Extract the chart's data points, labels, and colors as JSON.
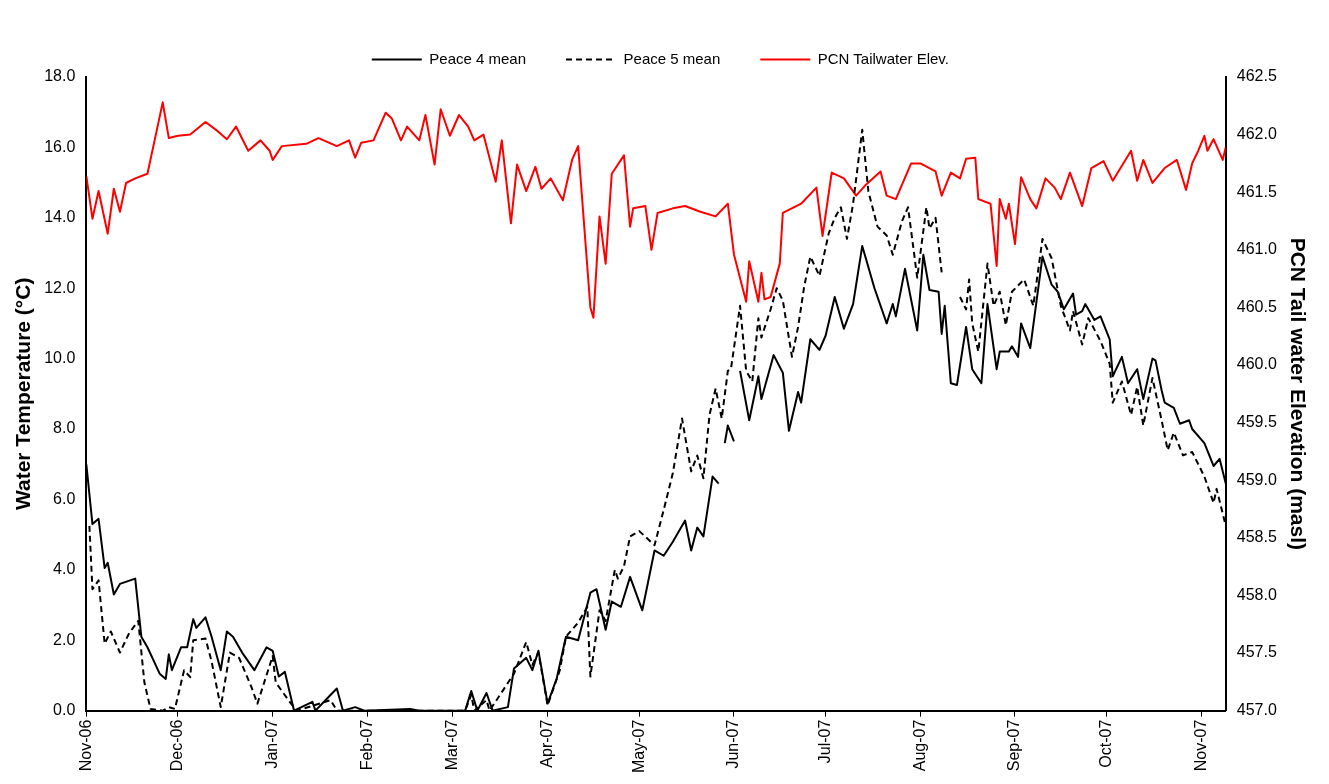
{
  "chart_data": {
    "type": "line",
    "ylabel": "Water Temperature (°C)",
    "y2label": "PCN Tail water Elevation (masl)",
    "legend": "top",
    "grid": false,
    "marker": "none",
    "xlim": [
      "2006-11-01",
      "2007-11-09"
    ],
    "xticks": [
      {
        "value": "2006-11-01",
        "label": "Nov-06"
      },
      {
        "value": "2006-12-01",
        "label": "Dec-06"
      },
      {
        "value": "2007-01-01",
        "label": "Jan-07"
      },
      {
        "value": "2007-02-01",
        "label": "Feb-07"
      },
      {
        "value": "2007-03-01",
        "label": "Mar-07"
      },
      {
        "value": "2007-04-01",
        "label": "Apr-07"
      },
      {
        "value": "2007-05-01",
        "label": "May-07"
      },
      {
        "value": "2007-06-01",
        "label": "Jun-07"
      },
      {
        "value": "2007-07-01",
        "label": "Jul-07"
      },
      {
        "value": "2007-08-01",
        "label": "Aug-07"
      },
      {
        "value": "2007-09-01",
        "label": "Sep-07"
      },
      {
        "value": "2007-10-01",
        "label": "Oct-07"
      },
      {
        "value": "2007-11-01",
        "label": "Nov-07"
      }
    ],
    "ylim": [
      0,
      18
    ],
    "yticks": [
      {
        "value": 0,
        "label": "0.0"
      },
      {
        "value": 2,
        "label": "2.0"
      },
      {
        "value": 4,
        "label": "4.0"
      },
      {
        "value": 6,
        "label": "6.0"
      },
      {
        "value": 8,
        "label": "8.0"
      },
      {
        "value": 10,
        "label": "10.0"
      },
      {
        "value": 12,
        "label": "12.0"
      },
      {
        "value": 14,
        "label": "14.0"
      },
      {
        "value": 16,
        "label": "16.0"
      },
      {
        "value": 18,
        "label": "18.0"
      }
    ],
    "y2lim": [
      457,
      462.5
    ],
    "y2ticks": [
      {
        "value": 457,
        "label": "457.0"
      },
      457.5,
      {
        "value": 458,
        "label": "458.0"
      },
      458.5,
      {
        "value": 459,
        "label": "459.0"
      },
      459.5,
      {
        "value": 460,
        "label": "460.0"
      },
      460.5,
      {
        "value": 461,
        "label": "461.0"
      },
      461.5,
      {
        "value": 462,
        "label": "462.0"
      },
      462.5
    ],
    "series": [
      {
        "name": "Peace 4 mean",
        "color": "#000000",
        "line_style": "solid",
        "x": [
          "2006-11-01",
          "2006-11-03",
          "2006-11-05",
          "2006-11-07",
          "2006-11-08",
          "2006-11-10",
          "2006-11-12",
          "2006-11-17",
          "2006-11-19",
          "2006-11-21",
          "2006-11-25",
          "2006-11-27",
          "2006-11-28",
          "2006-11-29",
          "2006-12-02",
          "2006-12-04",
          "2006-12-06",
          "2006-12-07",
          "2006-12-10",
          "2006-12-12",
          "2006-12-15",
          "2006-12-17",
          "2006-12-19",
          "2006-12-22",
          "2006-12-26",
          "2006-12-30",
          "2007-01-01",
          "2007-01-03",
          "2007-01-05",
          "2007-01-08",
          "2007-01-14",
          "2007-01-15",
          "2007-01-20",
          "2007-01-22",
          "2007-01-24",
          "2007-01-28",
          "2007-01-31",
          "2007-02-15",
          "2007-02-18",
          "2007-03-05",
          "2007-03-07",
          "2007-03-09",
          "2007-03-12",
          "2007-03-14",
          "2007-03-19",
          "2007-03-21",
          "2007-03-25",
          "2007-03-27",
          "2007-03-29",
          "2007-04-01",
          "2007-04-04",
          "2007-04-07",
          "2007-04-11",
          "2007-04-15",
          "2007-04-17",
          "2007-04-20",
          "2007-04-22",
          "2007-04-25",
          "2007-04-28",
          "2007-05-02",
          "2007-05-06",
          "2007-05-09",
          "2007-05-12",
          "2007-05-16",
          "2007-05-18",
          "2007-05-20",
          "2007-05-22",
          "2007-05-25",
          "2007-05-27",
          "2007-05-28",
          "2007-05-29",
          "2007-05-30",
          "2007-06-01",
          "2007-06-02",
          "2007-06-03",
          "2007-06-06",
          "2007-06-09",
          "2007-06-10",
          "2007-06-14",
          "2007-06-17",
          "2007-06-19",
          "2007-06-22",
          "2007-06-23",
          "2007-06-26",
          "2007-06-29",
          "2007-07-01",
          "2007-07-04",
          "2007-07-07",
          "2007-07-10",
          "2007-07-13",
          "2007-07-17",
          "2007-07-21",
          "2007-07-23",
          "2007-07-24",
          "2007-07-27",
          "2007-07-31",
          "2007-08-02",
          "2007-08-04",
          "2007-08-07",
          "2007-08-08",
          "2007-08-09",
          "2007-08-11",
          "2007-08-13",
          "2007-08-16",
          "2007-08-18",
          "2007-08-21",
          "2007-08-23",
          "2007-08-26",
          "2007-08-27",
          "2007-08-30",
          "2007-08-31",
          "2007-09-02",
          "2007-09-03",
          "2007-09-06",
          "2007-09-10",
          "2007-09-13",
          "2007-09-15",
          "2007-09-17",
          "2007-09-20",
          "2007-09-21",
          "2007-09-23",
          "2007-09-24",
          "2007-09-27",
          "2007-09-29",
          "2007-10-02",
          "2007-10-03",
          "2007-10-06",
          "2007-10-08",
          "2007-10-11",
          "2007-10-13",
          "2007-10-16",
          "2007-10-17",
          "2007-10-19",
          "2007-10-20",
          "2007-10-23",
          "2007-10-25",
          "2007-10-28",
          "2007-10-29",
          "2007-11-02",
          "2007-11-05",
          "2007-11-07",
          "2007-11-09"
        ],
        "values": [
          7.0,
          5.3,
          5.45,
          4.05,
          4.2,
          3.3,
          3.6,
          3.75,
          2.1,
          1.8,
          1.05,
          0.9,
          1.6,
          1.15,
          1.8,
          1.8,
          2.6,
          2.35,
          2.65,
          2.1,
          1.15,
          2.25,
          2.1,
          1.65,
          1.15,
          1.8,
          1.7,
          0.97,
          1.1,
          0,
          0.25,
          0,
          0.45,
          0.63,
          0,
          0.1,
          0,
          0.05,
          0,
          0,
          0.56,
          0,
          0.5,
          0,
          0.1,
          1.2,
          1.5,
          1.15,
          1.7,
          0.2,
          0.92,
          2.1,
          2.0,
          3.35,
          3.45,
          2.3,
          3.1,
          2.95,
          3.8,
          2.85,
          4.55,
          4.4,
          4.8,
          5.4,
          4.55,
          5.2,
          4.95,
          6.65,
          6.45,
          null,
          7.6,
          8.1,
          7.65,
          null,
          9.65,
          8.25,
          9.5,
          8.85,
          10.1,
          9.6,
          7.95,
          9.05,
          8.75,
          10.55,
          10.25,
          10.65,
          11.75,
          10.85,
          11.55,
          13.2,
          12.0,
          11.0,
          11.55,
          11.2,
          12.55,
          10.8,
          12.95,
          11.95,
          11.9,
          10.7,
          11.5,
          9.3,
          9.25,
          10.9,
          9.7,
          9.3,
          11.55,
          9.7,
          10.2,
          10.2,
          10.35,
          10.05,
          11.0,
          10.3,
          12.9,
          12.1,
          11.9,
          11.4,
          11.85,
          11.25,
          11.35,
          11.55,
          11.1,
          11.2,
          10.55,
          9.5,
          10.05,
          9.3,
          9.7,
          8.85,
          10.0,
          9.95,
          9.1,
          8.75,
          8.6,
          8.15,
          8.25,
          8.0,
          7.6,
          6.95,
          7.15,
          6.45
        ]
      },
      {
        "name": "Peace 5 mean",
        "color": "#000000",
        "line_style": "dashed",
        "x": [
          "2006-11-02",
          "2006-11-03",
          "2006-11-05",
          "2006-11-07",
          "2006-11-09",
          "2006-11-12",
          "2006-11-15",
          "2006-11-18",
          "2006-11-20",
          "2006-11-22",
          "2006-11-26",
          "2006-11-28",
          "2006-11-30",
          "2006-12-03",
          "2006-12-05",
          "2006-12-06",
          "2006-12-10",
          "2006-12-12",
          "2006-12-15",
          "2006-12-18",
          "2006-12-21",
          "2006-12-25",
          "2006-12-27",
          "2007-01-01",
          "2007-01-02",
          "2007-01-07",
          "2007-01-09",
          "2007-01-20",
          "2007-01-22",
          "2007-03-05",
          "2007-03-07",
          "2007-03-08",
          "2007-03-12",
          "2007-03-13",
          "2007-03-21",
          "2007-03-25",
          "2007-03-27",
          "2007-03-29",
          "2007-04-01",
          "2007-04-05",
          "2007-04-07",
          "2007-04-11",
          "2007-04-14",
          "2007-04-15",
          "2007-04-18",
          "2007-04-20",
          "2007-04-23",
          "2007-04-24",
          "2007-04-26",
          "2007-04-28",
          "2007-05-01",
          "2007-05-06",
          "2007-05-09",
          "2007-05-12",
          "2007-05-15",
          "2007-05-18",
          "2007-05-20",
          "2007-05-22",
          "2007-05-24",
          "2007-05-26",
          "2007-05-28",
          "2007-05-30",
          "2007-05-31",
          "2007-06-03",
          "2007-06-05",
          "2007-06-07",
          "2007-06-09",
          "2007-06-10",
          "2007-06-13",
          "2007-06-15",
          "2007-06-17",
          "2007-06-20",
          "2007-06-22",
          "2007-06-24",
          "2007-06-26",
          "2007-06-29",
          "2007-07-02",
          "2007-07-04",
          "2007-07-06",
          "2007-07-08",
          "2007-07-10",
          "2007-07-13",
          "2007-07-15",
          "2007-07-18",
          "2007-07-21",
          "2007-07-23",
          "2007-07-26",
          "2007-07-28",
          "2007-07-31",
          "2007-08-03",
          "2007-08-04",
          "2007-08-06",
          "2007-08-08",
          "2007-08-10",
          "2007-08-14",
          "2007-08-16",
          "2007-08-17",
          "2007-08-18",
          "2007-08-20",
          "2007-08-23",
          "2007-08-25",
          "2007-08-27",
          "2007-08-29",
          "2007-08-31",
          "2007-09-04",
          "2007-09-07",
          "2007-09-10",
          "2007-09-13",
          "2007-09-16",
          "2007-09-19",
          "2007-09-20",
          "2007-09-23",
          "2007-09-25",
          "2007-09-29",
          "2007-10-02",
          "2007-10-03",
          "2007-10-06",
          "2007-10-09",
          "2007-10-11",
          "2007-10-13",
          "2007-10-16",
          "2007-10-19",
          "2007-10-21",
          "2007-10-23",
          "2007-10-26",
          "2007-10-29",
          "2007-11-02",
          "2007-11-05",
          "2007-11-06",
          "2007-11-09"
        ],
        "values": [
          5.25,
          3.45,
          3.7,
          1.9,
          2.25,
          1.65,
          2.2,
          2.55,
          0.8,
          0.05,
          0,
          0.1,
          0.05,
          1.15,
          0.95,
          2.0,
          2.05,
          1.4,
          0.1,
          1.65,
          1.5,
          0.68,
          0.2,
          1.55,
          0.8,
          0.2,
          0,
          0.3,
          0,
          0,
          0.45,
          0,
          0.3,
          0,
          1.05,
          1.95,
          1.3,
          1.65,
          0.15,
          1.15,
          2.1,
          2.5,
          2.95,
          0.97,
          2.85,
          2.55,
          4.0,
          3.75,
          4.1,
          4.95,
          5.1,
          4.7,
          5.7,
          6.75,
          8.3,
          6.8,
          7.25,
          6.6,
          8.4,
          9.15,
          8.3,
          9.65,
          9.7,
          11.5,
          9.65,
          9.35,
          11.15,
          10.6,
          11.4,
          12.0,
          11.65,
          10.05,
          10.9,
          12.05,
          12.9,
          12.35,
          13.55,
          14.0,
          14.3,
          13.4,
          14.4,
          16.5,
          14.75,
          13.75,
          13.5,
          12.95,
          13.9,
          14.3,
          12.3,
          14.3,
          13.7,
          14.0,
          12.45,
          null,
          11.75,
          11.4,
          12.25,
          11.0,
          10.2,
          12.7,
          11.5,
          11.9,
          10.95,
          11.9,
          12.25,
          11.5,
          13.4,
          12.85,
          11.5,
          10.8,
          11.35,
          10.4,
          11.15,
          10.5,
          9.85,
          8.75,
          9.35,
          8.4,
          9.2,
          8.1,
          9.45,
          8.25,
          7.4,
          7.9,
          7.25,
          7.35,
          6.65,
          5.9,
          6.3,
          5.25
        ]
      },
      {
        "name": "PCN Tailwater Elev.",
        "color": "#ff0000",
        "line_style": "solid",
        "axis": "y2",
        "x": [
          "2006-11-01",
          "2006-11-03",
          "2006-11-05",
          "2006-11-08",
          "2006-11-10",
          "2006-11-12",
          "2006-11-14",
          "2006-11-17",
          "2006-11-21",
          "2006-11-24",
          "2006-11-26",
          "2006-11-28",
          "2006-12-01",
          "2006-12-05",
          "2006-12-10",
          "2006-12-14",
          "2006-12-17",
          "2006-12-20",
          "2006-12-24",
          "2006-12-28",
          "2006-12-31",
          "2007-01-01",
          "2007-01-04",
          "2007-01-12",
          "2007-01-16",
          "2007-01-22",
          "2007-01-26",
          "2007-01-28",
          "2007-01-30",
          "2007-02-03",
          "2007-02-07",
          "2007-02-09",
          "2007-02-12",
          "2007-02-14",
          "2007-02-18",
          "2007-02-20",
          "2007-02-23",
          "2007-02-25",
          "2007-02-28",
          "2007-03-03",
          "2007-03-06",
          "2007-03-08",
          "2007-03-11",
          "2007-03-15",
          "2007-03-17",
          "2007-03-20",
          "2007-03-22",
          "2007-03-25",
          "2007-03-28",
          "2007-03-30",
          "2007-04-02",
          "2007-04-06",
          "2007-04-09",
          "2007-04-11",
          "2007-04-15",
          "2007-04-16",
          "2007-04-18",
          "2007-04-20",
          "2007-04-22",
          "2007-04-26",
          "2007-04-28",
          "2007-04-29",
          "2007-05-03",
          "2007-05-05",
          "2007-05-07",
          "2007-05-12",
          "2007-05-16",
          "2007-05-21",
          "2007-05-26",
          "2007-05-30",
          "2007-06-01",
          "2007-06-05",
          "2007-06-06",
          "2007-06-09",
          "2007-06-10",
          "2007-06-11",
          "2007-06-13",
          "2007-06-16",
          "2007-06-17",
          "2007-06-23",
          "2007-06-28",
          "2007-06-30",
          "2007-07-03",
          "2007-07-07",
          "2007-07-11",
          "2007-07-14",
          "2007-07-19",
          "2007-07-21",
          "2007-07-24",
          "2007-07-29",
          "2007-08-01",
          "2007-08-06",
          "2007-08-08",
          "2007-08-11",
          "2007-08-14",
          "2007-08-16",
          "2007-08-19",
          "2007-08-20",
          "2007-08-24",
          "2007-08-26",
          "2007-08-27",
          "2007-08-29",
          "2007-08-30",
          "2007-09-01",
          "2007-09-03",
          "2007-09-06",
          "2007-09-08",
          "2007-09-11",
          "2007-09-14",
          "2007-09-16",
          "2007-09-19",
          "2007-09-23",
          "2007-09-26",
          "2007-09-30",
          "2007-10-03",
          "2007-10-09",
          "2007-10-11",
          "2007-10-13",
          "2007-10-16",
          "2007-10-20",
          "2007-10-24",
          "2007-10-27",
          "2007-10-29",
          "2007-10-31",
          "2007-11-02",
          "2007-11-03",
          "2007-11-05",
          "2007-11-08",
          "2007-11-09"
        ],
        "values": [
          461.64,
          461.27,
          461.51,
          461.14,
          461.53,
          461.33,
          461.58,
          461.62,
          461.66,
          462.03,
          462.28,
          461.97,
          461.99,
          462.0,
          462.11,
          462.03,
          461.96,
          462.07,
          461.86,
          461.95,
          461.86,
          461.78,
          461.9,
          461.92,
          461.97,
          461.9,
          461.95,
          461.8,
          461.93,
          461.95,
          462.19,
          462.14,
          461.95,
          462.07,
          461.95,
          462.17,
          461.74,
          462.22,
          461.99,
          462.17,
          462.07,
          461.95,
          462.0,
          461.59,
          461.95,
          461.23,
          461.74,
          461.51,
          461.72,
          461.53,
          461.62,
          461.43,
          461.78,
          461.9,
          460.5,
          460.41,
          461.29,
          460.88,
          461.66,
          461.82,
          461.2,
          461.36,
          461.38,
          461.0,
          461.32,
          461.36,
          461.38,
          461.33,
          461.29,
          461.4,
          460.96,
          460.55,
          460.9,
          460.55,
          460.8,
          460.57,
          460.59,
          460.88,
          461.32,
          461.4,
          461.54,
          461.12,
          461.67,
          461.62,
          461.47,
          461.56,
          461.68,
          461.47,
          461.44,
          461.75,
          461.75,
          461.68,
          461.47,
          461.67,
          461.62,
          461.79,
          461.8,
          461.44,
          461.4,
          460.86,
          461.44,
          461.27,
          461.4,
          461.05,
          461.63,
          461.44,
          461.36,
          461.62,
          461.54,
          461.44,
          461.67,
          461.38,
          461.71,
          461.77,
          461.6,
          461.86,
          461.6,
          461.78,
          461.58,
          461.71,
          461.78,
          461.52,
          461.75,
          461.86,
          461.99,
          461.86,
          461.96,
          461.78,
          461.89
        ]
      }
    ]
  }
}
